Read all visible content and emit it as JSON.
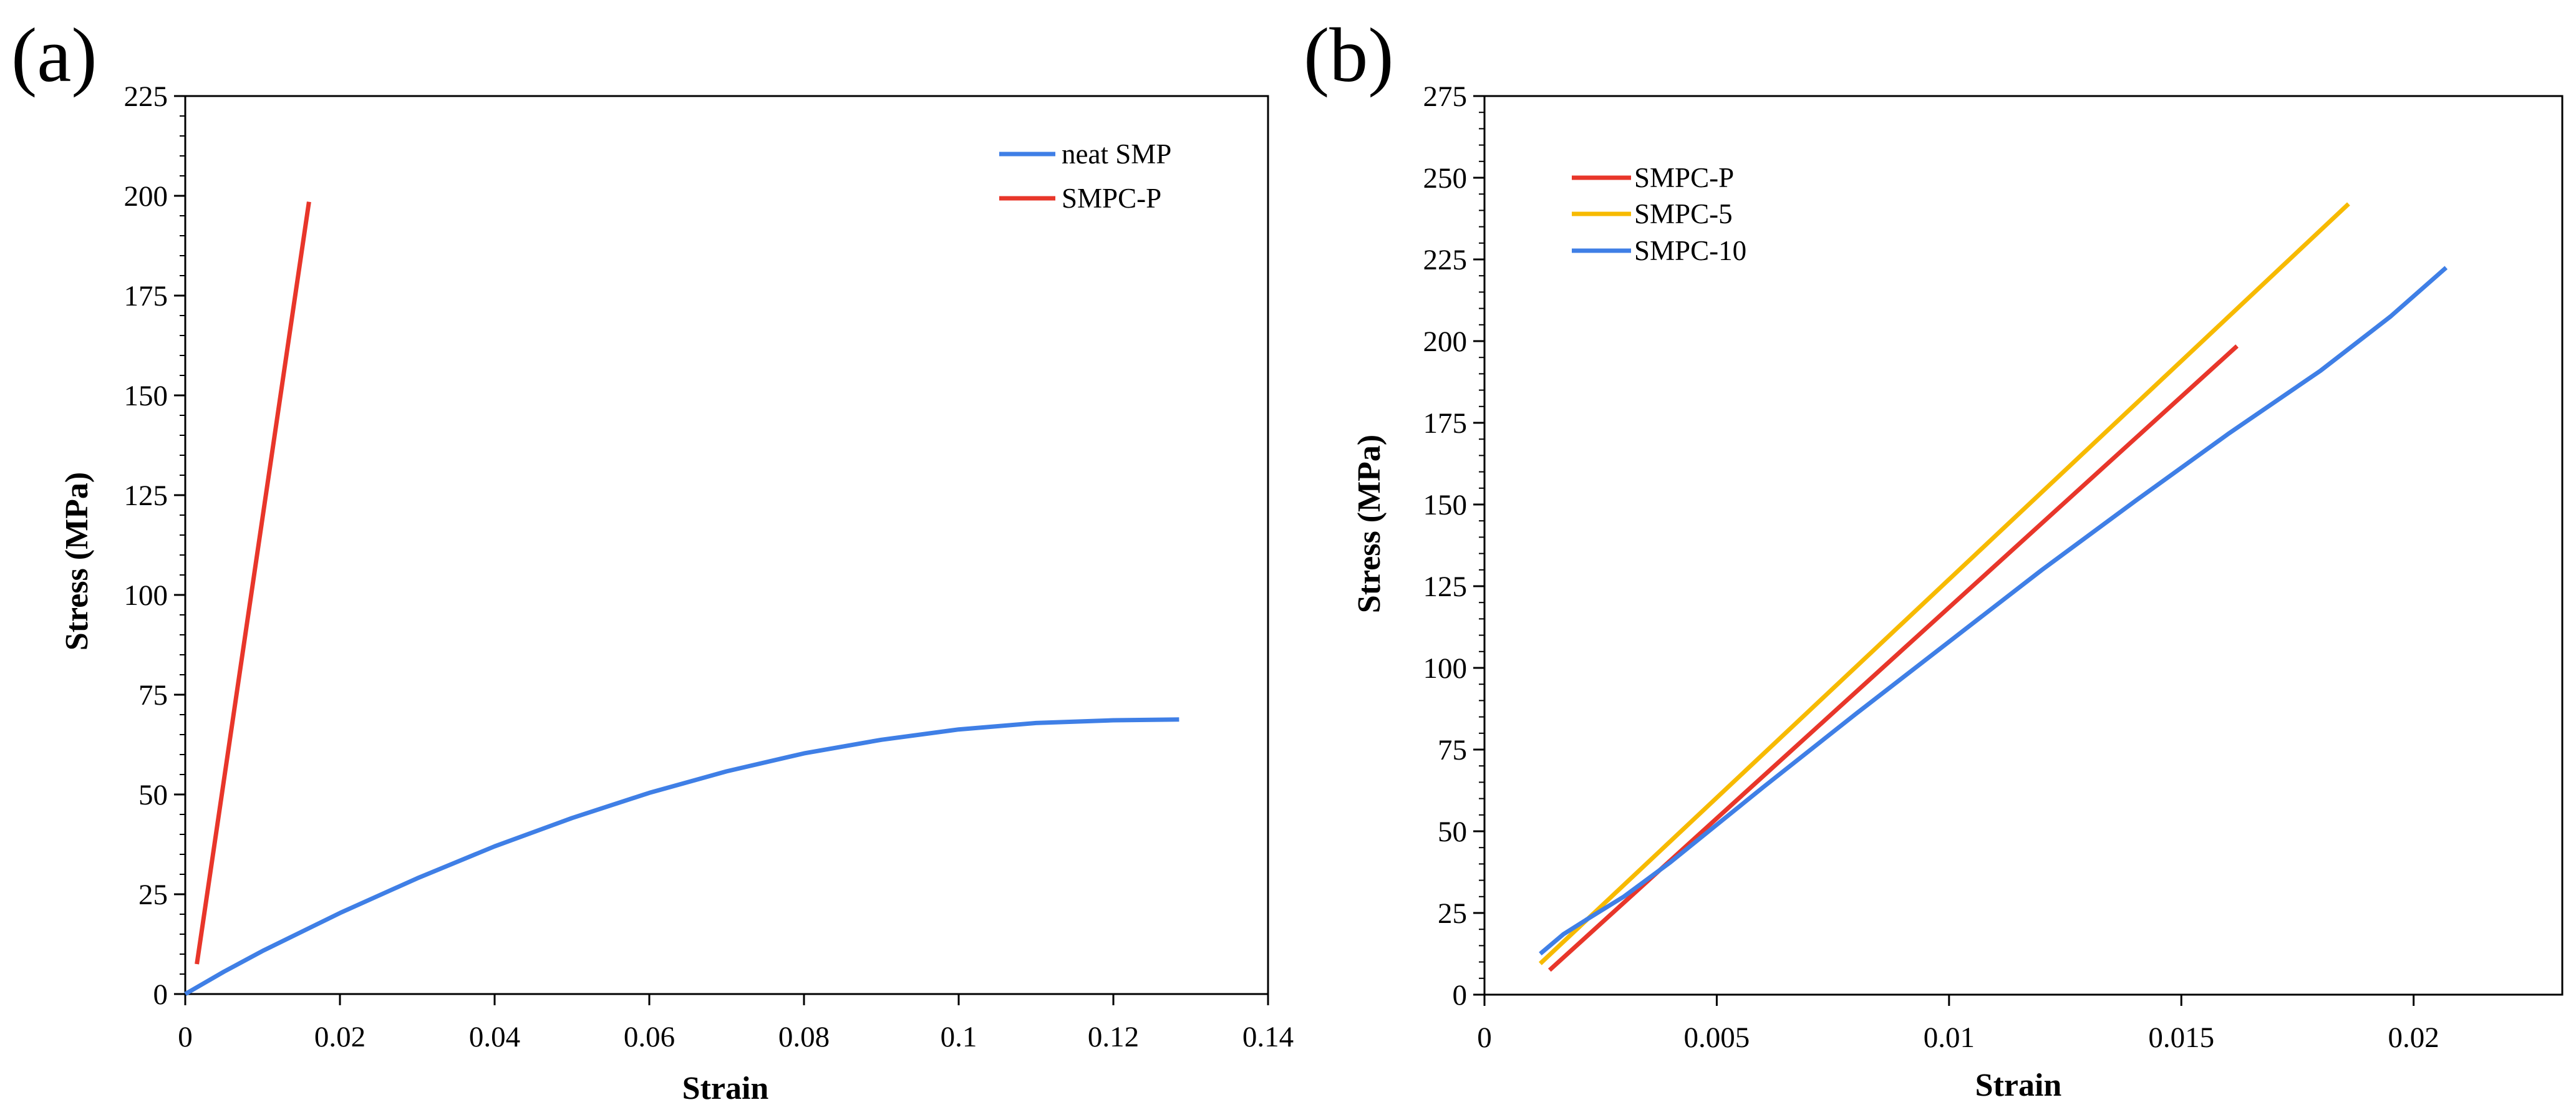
{
  "colors": {
    "blue": "#3F7FE6",
    "red": "#E8362A",
    "yellow": "#F7BA00",
    "axis": "#000000"
  },
  "chart_data": [
    {
      "panel_label": "(a)",
      "type": "line",
      "xlabel": "Strain",
      "ylabel": "Stress (MPa)",
      "xlim": [
        0,
        0.14
      ],
      "ylim": [
        0,
        225
      ],
      "xticks": [
        0,
        0.02,
        0.04,
        0.06,
        0.08,
        0.1,
        0.12,
        0.14
      ],
      "xtick_labels": [
        "0",
        "0.02",
        "0.04",
        "0.06",
        "0.08",
        "0.1",
        "0.12",
        "0.14"
      ],
      "yticks": [
        0,
        25,
        50,
        75,
        100,
        125,
        150,
        175,
        200,
        225
      ],
      "ytick_labels": [
        "0",
        "25",
        "50",
        "75",
        "100",
        "125",
        "150",
        "175",
        "200",
        "225"
      ],
      "y_minor_step": 5,
      "grid": false,
      "legend_position": "top-right",
      "series": [
        {
          "name": "neat SMP",
          "color": "#3F7FE6",
          "x": [
            0,
            0.005,
            0.01,
            0.02,
            0.03,
            0.04,
            0.05,
            0.06,
            0.07,
            0.08,
            0.09,
            0.1,
            0.11,
            0.12,
            0.1285
          ],
          "y": [
            0,
            5.6,
            10.8,
            20.3,
            29.0,
            37.0,
            44.1,
            50.4,
            55.8,
            60.3,
            63.7,
            66.3,
            67.9,
            68.6,
            68.8
          ]
        },
        {
          "name": "SMPC-P",
          "color": "#E8362A",
          "x": [
            0.0015,
            0.016
          ],
          "y": [
            7.5,
            198.5
          ]
        }
      ]
    },
    {
      "panel_label": "(b)",
      "type": "line",
      "xlabel": "Strain",
      "ylabel": "Stress (MPa)",
      "xlim": [
        0,
        0.0232
      ],
      "ylim": [
        0,
        275
      ],
      "xticks": [
        0,
        0.005,
        0.01,
        0.015,
        0.02
      ],
      "xtick_labels": [
        "0",
        "0.005",
        "0.01",
        "0.015",
        "0.02"
      ],
      "yticks": [
        0,
        25,
        50,
        75,
        100,
        125,
        150,
        175,
        200,
        225,
        250,
        275
      ],
      "ytick_labels": [
        "0",
        "25",
        "50",
        "75",
        "100",
        "125",
        "150",
        "175",
        "200",
        "225",
        "250",
        "275"
      ],
      "y_minor_step": 5,
      "grid": false,
      "legend_position": "top-left",
      "series": [
        {
          "name": "SMPC-P",
          "color": "#E8362A",
          "x": [
            0.0014,
            0.0162
          ],
          "y": [
            7.5,
            198.5
          ]
        },
        {
          "name": "SMPC-5",
          "color": "#F7BA00",
          "x": [
            0.0012,
            0.0186
          ],
          "y": [
            9.5,
            242
          ]
        },
        {
          "name": "SMPC-10",
          "color": "#3F7FE6",
          "x": [
            0.0012,
            0.0017,
            0.0022,
            0.003,
            0.004,
            0.005,
            0.006,
            0.008,
            0.01,
            0.012,
            0.014,
            0.016,
            0.018,
            0.0195,
            0.0207
          ],
          "y": [
            12.5,
            18.5,
            23.0,
            30.0,
            40.5,
            52.0,
            63.5,
            86.0,
            108.0,
            130.0,
            151.0,
            171.5,
            191.0,
            207.5,
            222.5
          ]
        }
      ]
    }
  ]
}
